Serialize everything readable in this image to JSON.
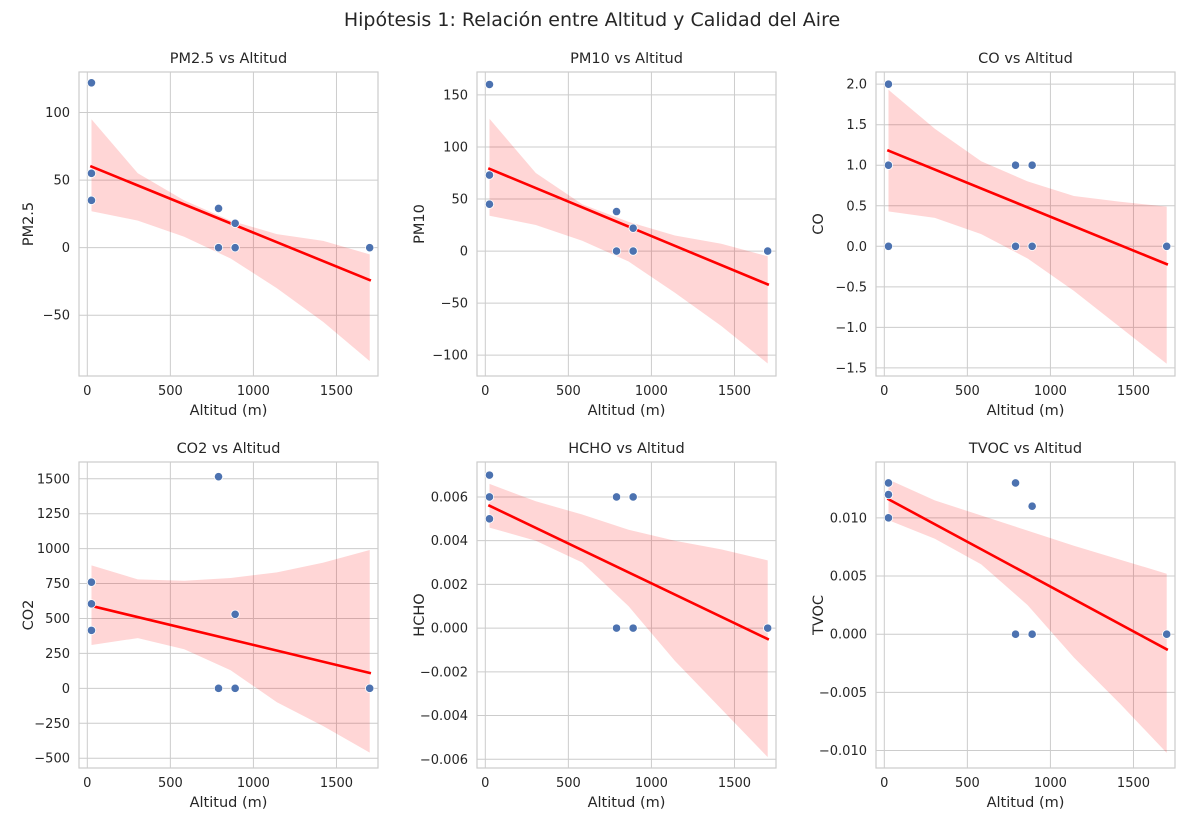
{
  "title": "Hipótesis 1: Relación entre Altitud y Calidad del Aire",
  "chart_data": [
    {
      "type": "scatter",
      "title": "PM2.5 vs Altitud",
      "xlabel": "Altitud (m)",
      "ylabel": "PM2.5",
      "xlim": [
        -50,
        1750
      ],
      "ylim": [
        -95,
        130
      ],
      "xticks": [
        0,
        500,
        1000,
        1500
      ],
      "yticks": [
        -50,
        0,
        50,
        100
      ],
      "ytick_labels": [
        "−50",
        "0",
        "50",
        "100"
      ],
      "grid": true,
      "points": [
        [
          25,
          122
        ],
        [
          25,
          55
        ],
        [
          25,
          35
        ],
        [
          790,
          29
        ],
        [
          790,
          0
        ],
        [
          890,
          18
        ],
        [
          890,
          0
        ],
        [
          1700,
          0
        ]
      ],
      "regression": {
        "x": [
          25,
          1700
        ],
        "y": [
          60,
          -24
        ],
        "ci_upper": [
          95,
          55,
          35,
          20,
          10,
          5,
          -5
        ],
        "ci_lower": [
          27,
          20,
          8,
          -8,
          -30,
          -55,
          -84
        ]
      }
    },
    {
      "type": "scatter",
      "title": "PM10 vs Altitud",
      "xlabel": "Altitud (m)",
      "ylabel": "PM10",
      "xlim": [
        -50,
        1750
      ],
      "ylim": [
        -120,
        172
      ],
      "xticks": [
        0,
        500,
        1000,
        1500
      ],
      "yticks": [
        -100,
        -50,
        0,
        50,
        100,
        150
      ],
      "ytick_labels": [
        "−100",
        "−50",
        "0",
        "50",
        "100",
        "150"
      ],
      "grid": true,
      "points": [
        [
          25,
          160
        ],
        [
          25,
          73
        ],
        [
          25,
          45
        ],
        [
          790,
          38
        ],
        [
          790,
          0
        ],
        [
          890,
          22
        ],
        [
          890,
          0
        ],
        [
          1700,
          0
        ]
      ],
      "regression": {
        "x": [
          25,
          1700
        ],
        "y": [
          79,
          -32
        ],
        "ci_upper": [
          127,
          75,
          45,
          28,
          15,
          7,
          -5
        ],
        "ci_lower": [
          34,
          25,
          10,
          -10,
          -40,
          -72,
          -108
        ]
      }
    },
    {
      "type": "scatter",
      "title": "CO vs Altitud",
      "xlabel": "Altitud (m)",
      "ylabel": "CO",
      "xlim": [
        -50,
        1750
      ],
      "ylim": [
        -1.6,
        2.15
      ],
      "xticks": [
        0,
        500,
        1000,
        1500
      ],
      "yticks": [
        -1.5,
        -1.0,
        -0.5,
        0.0,
        0.5,
        1.0,
        1.5,
        2.0
      ],
      "ytick_labels": [
        "−1.5",
        "−1.0",
        "−0.5",
        "0.0",
        "0.5",
        "1.0",
        "1.5",
        "2.0"
      ],
      "grid": true,
      "points": [
        [
          25,
          2
        ],
        [
          25,
          1
        ],
        [
          25,
          0
        ],
        [
          790,
          1
        ],
        [
          790,
          0
        ],
        [
          890,
          1
        ],
        [
          890,
          0
        ],
        [
          1700,
          0
        ]
      ],
      "regression": {
        "x": [
          25,
          1700
        ],
        "y": [
          1.18,
          -0.22
        ],
        "ci_upper": [
          1.93,
          1.45,
          1.05,
          0.8,
          0.62,
          0.55,
          0.49
        ],
        "ci_lower": [
          0.43,
          0.35,
          0.15,
          -0.15,
          -0.55,
          -1.0,
          -1.45
        ]
      }
    },
    {
      "type": "scatter",
      "title": "CO2 vs Altitud",
      "xlabel": "Altitud (m)",
      "ylabel": "CO2",
      "xlim": [
        -50,
        1750
      ],
      "ylim": [
        -570,
        1620
      ],
      "xticks": [
        0,
        500,
        1000,
        1500
      ],
      "yticks": [
        -500,
        -250,
        0,
        250,
        500,
        750,
        1000,
        1250,
        1500
      ],
      "ytick_labels": [
        "−500",
        "−250",
        "0",
        "250",
        "500",
        "750",
        "1000",
        "1250",
        "1500"
      ],
      "grid": true,
      "points": [
        [
          25,
          760
        ],
        [
          25,
          605
        ],
        [
          25,
          415
        ],
        [
          790,
          1515
        ],
        [
          790,
          0
        ],
        [
          890,
          530
        ],
        [
          890,
          0
        ],
        [
          1700,
          0
        ]
      ],
      "regression": {
        "x": [
          25,
          1700
        ],
        "y": [
          590,
          110
        ],
        "ci_upper": [
          880,
          780,
          770,
          790,
          830,
          900,
          990
        ],
        "ci_lower": [
          310,
          360,
          280,
          130,
          -100,
          -270,
          -460
        ]
      }
    },
    {
      "type": "scatter",
      "title": "HCHO vs Altitud",
      "xlabel": "Altitud (m)",
      "ylabel": "HCHO",
      "xlim": [
        -50,
        1750
      ],
      "ylim": [
        -0.0064,
        0.0076
      ],
      "xticks": [
        0,
        500,
        1000,
        1500
      ],
      "yticks": [
        -0.006,
        -0.004,
        -0.002,
        0.0,
        0.002,
        0.004,
        0.006
      ],
      "ytick_labels": [
        "−0.006",
        "−0.004",
        "−0.002",
        "0.000",
        "0.002",
        "0.004",
        "0.006"
      ],
      "grid": true,
      "points": [
        [
          25,
          0.007
        ],
        [
          25,
          0.006
        ],
        [
          25,
          0.005
        ],
        [
          790,
          0.006
        ],
        [
          790,
          0
        ],
        [
          890,
          0.006
        ],
        [
          890,
          0
        ],
        [
          1700,
          0
        ]
      ],
      "regression": {
        "x": [
          25,
          1700
        ],
        "y": [
          0.0056,
          -0.0005
        ],
        "ci_upper": [
          0.0066,
          0.0058,
          0.0052,
          0.0045,
          0.004,
          0.0036,
          0.0031
        ],
        "ci_lower": [
          0.0046,
          0.004,
          0.003,
          0.001,
          -0.0015,
          -0.0037,
          -0.0059
        ]
      }
    },
    {
      "type": "scatter",
      "title": "TVOC vs Altitud",
      "xlabel": "Altitud (m)",
      "ylabel": "TVOC",
      "xlim": [
        -50,
        1750
      ],
      "ylim": [
        -0.0115,
        0.0148
      ],
      "xticks": [
        0,
        500,
        1000,
        1500
      ],
      "yticks": [
        -0.01,
        -0.005,
        0.0,
        0.005,
        0.01
      ],
      "ytick_labels": [
        "−0.010",
        "−0.005",
        "0.000",
        "0.005",
        "0.010"
      ],
      "grid": true,
      "points": [
        [
          25,
          0.013
        ],
        [
          25,
          0.012
        ],
        [
          25,
          0.01
        ],
        [
          790,
          0.013
        ],
        [
          790,
          0
        ],
        [
          890,
          0.011
        ],
        [
          890,
          0
        ],
        [
          1700,
          0
        ]
      ],
      "regression": {
        "x": [
          25,
          1700
        ],
        "y": [
          0.0116,
          -0.0013
        ],
        "ci_upper": [
          0.0133,
          0.0115,
          0.0102,
          0.0089,
          0.0076,
          0.0064,
          0.0052
        ],
        "ci_lower": [
          0.0098,
          0.0082,
          0.006,
          0.0025,
          -0.002,
          -0.006,
          -0.0102
        ]
      }
    }
  ]
}
